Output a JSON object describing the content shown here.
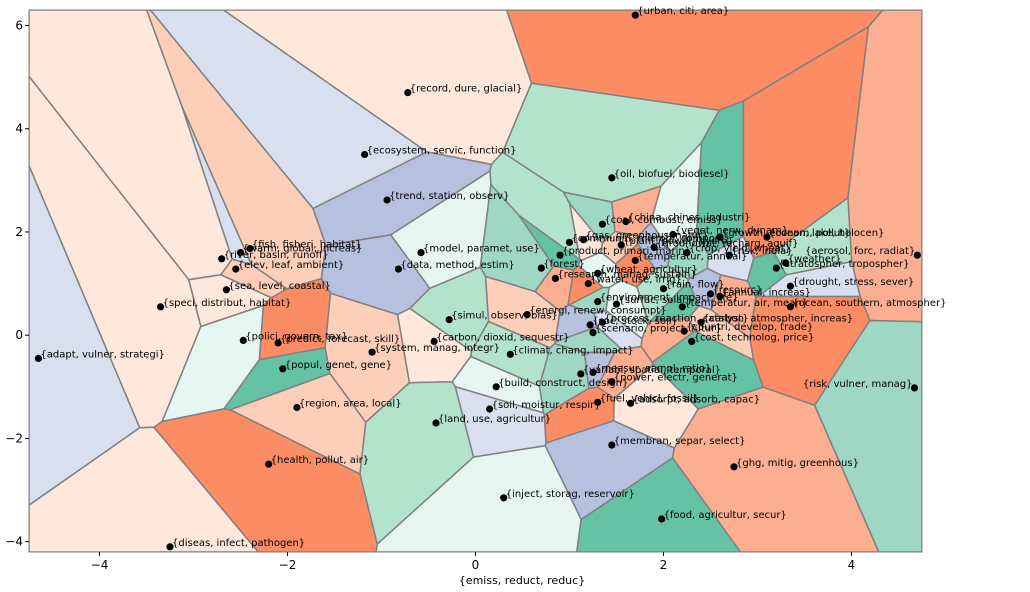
{
  "chart_data": {
    "type": "scatter",
    "title": "",
    "xlabel": "{emiss, reduct, reduc}",
    "ylabel": "",
    "xlim": [
      -4.75,
      4.75
    ],
    "ylim": [
      -4.2,
      6.3
    ],
    "xticks": [
      -4,
      -2,
      0,
      2,
      4
    ],
    "yticks": [
      -4,
      -2,
      0,
      2,
      4,
      6
    ],
    "grid": false,
    "legend": "none",
    "background": "voronoi-regions",
    "region_colors": [
      "#fee8dc",
      "#fdcfb8",
      "#fcae91",
      "#fb8c63",
      "#b3e2cd",
      "#9ed8c4",
      "#66c2a5",
      "#d9dfee",
      "#b6c1e0",
      "#e5f5ef"
    ],
    "cell_edge_color": "#808080",
    "marker_color": "#000000",
    "points": [
      {
        "label": "{urban, citi, area}",
        "x": 1.7,
        "y": 6.2
      },
      {
        "label": "{record, dure, glacial}",
        "x": -0.72,
        "y": 4.7
      },
      {
        "label": "{ecosystem, servic, function}",
        "x": -1.18,
        "y": 3.5
      },
      {
        "label": "{oil, biofuel, biodiesel}",
        "x": 1.45,
        "y": 3.05
      },
      {
        "label": "{fish, fisheri, habitat}",
        "x": -2.4,
        "y": 1.68
      },
      {
        "label": "{trend, station, observ}",
        "x": -0.94,
        "y": 2.62
      },
      {
        "label": "{coal, combust, emiss}",
        "x": 1.35,
        "y": 2.15
      },
      {
        "label": "{china, chines, industri}",
        "x": 1.6,
        "y": 2.2
      },
      {
        "label": "{veget, nerw, dynam}",
        "x": 2.1,
        "y": 1.95
      },
      {
        "label": "{growth, econom, pollut}",
        "x": 2.6,
        "y": 1.9
      },
      {
        "label": "{ocean, lake, holocen}",
        "x": 3.1,
        "y": 1.9
      },
      {
        "label": "{gas, greenhous, natur}",
        "x": 1.15,
        "y": 1.85
      },
      {
        "label": "{warm, global, increas}",
        "x": -2.5,
        "y": 1.6
      },
      {
        "label": "{communiti, microbi, compost}",
        "x": 1.0,
        "y": 1.8
      },
      {
        "label": "{plant, power, hydro}",
        "x": 1.55,
        "y": 1.75
      },
      {
        "label": "{groundwat, recharg, aquif}",
        "x": 1.9,
        "y": 1.7
      },
      {
        "label": "{crop, yield, wheat}",
        "x": 2.25,
        "y": 1.6
      },
      {
        "label": "{aerosol, forc, radiat}",
        "x": 4.7,
        "y": 1.55
      },
      {
        "label": "{model, paramet, use}",
        "x": -0.58,
        "y": 1.6
      },
      {
        "label": "{product, primari, marin}",
        "x": 0.9,
        "y": 1.55
      },
      {
        "label": "{temperatur, annual}",
        "x": 1.7,
        "y": 1.45
      },
      {
        "label": "{river, basin, runoff}",
        "x": -2.7,
        "y": 1.48
      },
      {
        "label": "{risk, india}",
        "x": 2.7,
        "y": 1.55
      },
      {
        "label": "{weather}",
        "x": 3.3,
        "y": 1.4
      },
      {
        "label": "{elev, leaf, ambient}",
        "x": -2.55,
        "y": 1.28
      },
      {
        "label": "{data, method, estim}",
        "x": -0.82,
        "y": 1.28
      },
      {
        "label": "{forest}",
        "x": 0.7,
        "y": 1.3
      },
      {
        "label": "{research, manag, sustain}",
        "x": 0.85,
        "y": 1.1
      },
      {
        "label": "{wheat, agricultur}",
        "x": 1.3,
        "y": 1.2
      },
      {
        "label": "{stratospher, tropospher}",
        "x": 3.2,
        "y": 1.3
      },
      {
        "label": "{water, use, irrig}",
        "x": 1.2,
        "y": 1.0
      },
      {
        "label": "{sea, level, coastal}",
        "x": -2.65,
        "y": 0.88
      },
      {
        "label": "{drought, stress, sever}",
        "x": 3.35,
        "y": 0.95
      },
      {
        "label": "{rain, flow}",
        "x": 2.0,
        "y": 0.9
      },
      {
        "label": "{energi, renew, consumpt}",
        "x": 0.55,
        "y": 0.4
      },
      {
        "label": "{resourc}",
        "x": 2.5,
        "y": 0.8
      },
      {
        "label": "{environment, impact, life}",
        "x": 1.3,
        "y": 0.65
      },
      {
        "label": "{annual, increas}",
        "x": 2.6,
        "y": 0.75
      },
      {
        "label": "{surfac, solar}",
        "x": 1.5,
        "y": 0.6
      },
      {
        "label": "{temperatur, air, mean}",
        "x": 2.2,
        "y": 0.55
      },
      {
        "label": "{ocean, southern, atmospher}",
        "x": 3.35,
        "y": 0.55
      },
      {
        "label": "{speci, distribut, habitat}",
        "x": -3.35,
        "y": 0.55
      },
      {
        "label": "{process, reaction, catalyst}",
        "x": 1.35,
        "y": 0.25
      },
      {
        "label": "{simul, observ, bias}",
        "x": -0.28,
        "y": 0.3
      },
      {
        "label": "{carbon, atmospher, increas}",
        "x": 2.4,
        "y": 0.25
      },
      {
        "label": "{soc, stock, soil}",
        "x": 1.22,
        "y": 0.2
      },
      {
        "label": "{scenario, project, futur}",
        "x": 1.25,
        "y": 0.05
      },
      {
        "label": "{countri, develop, trade}",
        "x": 2.22,
        "y": 0.08
      },
      {
        "label": "{polici, govern, tax}",
        "x": -2.47,
        "y": -0.1
      },
      {
        "label": "{cost, technolog, price}",
        "x": 2.3,
        "y": -0.12
      },
      {
        "label": "{predict, forecast, skill}",
        "x": -2.1,
        "y": -0.15
      },
      {
        "label": "{carbon, dioxid, sequestr}",
        "x": -0.44,
        "y": -0.12
      },
      {
        "label": "{adapt, vulner, strategi}",
        "x": -4.65,
        "y": -0.45
      },
      {
        "label": "{climat, chang, impact}",
        "x": 0.37,
        "y": -0.37
      },
      {
        "label": "{system, manag, integr}",
        "x": -1.1,
        "y": -0.33
      },
      {
        "label": "{measur, sampl, ratio}",
        "x": 1.25,
        "y": -0.72
      },
      {
        "label": "{variabl, spatial, temporal}",
        "x": 1.12,
        "y": -0.75
      },
      {
        "label": "{power, electr, generat}",
        "x": 1.45,
        "y": -0.9
      },
      {
        "label": "{build, construct, design}",
        "x": 0.22,
        "y": -1.0
      },
      {
        "label": "{popul, genet, gene}",
        "x": -2.05,
        "y": -0.65
      },
      {
        "label": "{fuel, vehicl, fossil}",
        "x": 1.3,
        "y": -1.3
      },
      {
        "label": "{adsorpt, adsorb, capac}",
        "x": 1.65,
        "y": -1.32
      },
      {
        "label": "{soil, moistur, respir}",
        "x": 0.15,
        "y": -1.43
      },
      {
        "label": "{land, use, agricultur}",
        "x": -0.42,
        "y": -1.7
      },
      {
        "label": "{region, area, local}",
        "x": -1.9,
        "y": -1.4
      },
      {
        "label": "{membran, separ, select}",
        "x": 1.45,
        "y": -2.13
      },
      {
        "label": "{risk, vulner, manag}",
        "x": 4.67,
        "y": -1.02
      },
      {
        "label": "{ghg, mitig, greenhous}",
        "x": 2.75,
        "y": -2.55
      },
      {
        "label": "{inject, storag, reservoir}",
        "x": 0.3,
        "y": -3.15
      },
      {
        "label": "{food, agricultur, secur}",
        "x": 1.98,
        "y": -3.56
      },
      {
        "label": "{health, pollut, air}",
        "x": -2.2,
        "y": -2.5
      },
      {
        "label": "{diseas, infect, pathogen}",
        "x": -3.25,
        "y": -4.1
      }
    ]
  }
}
